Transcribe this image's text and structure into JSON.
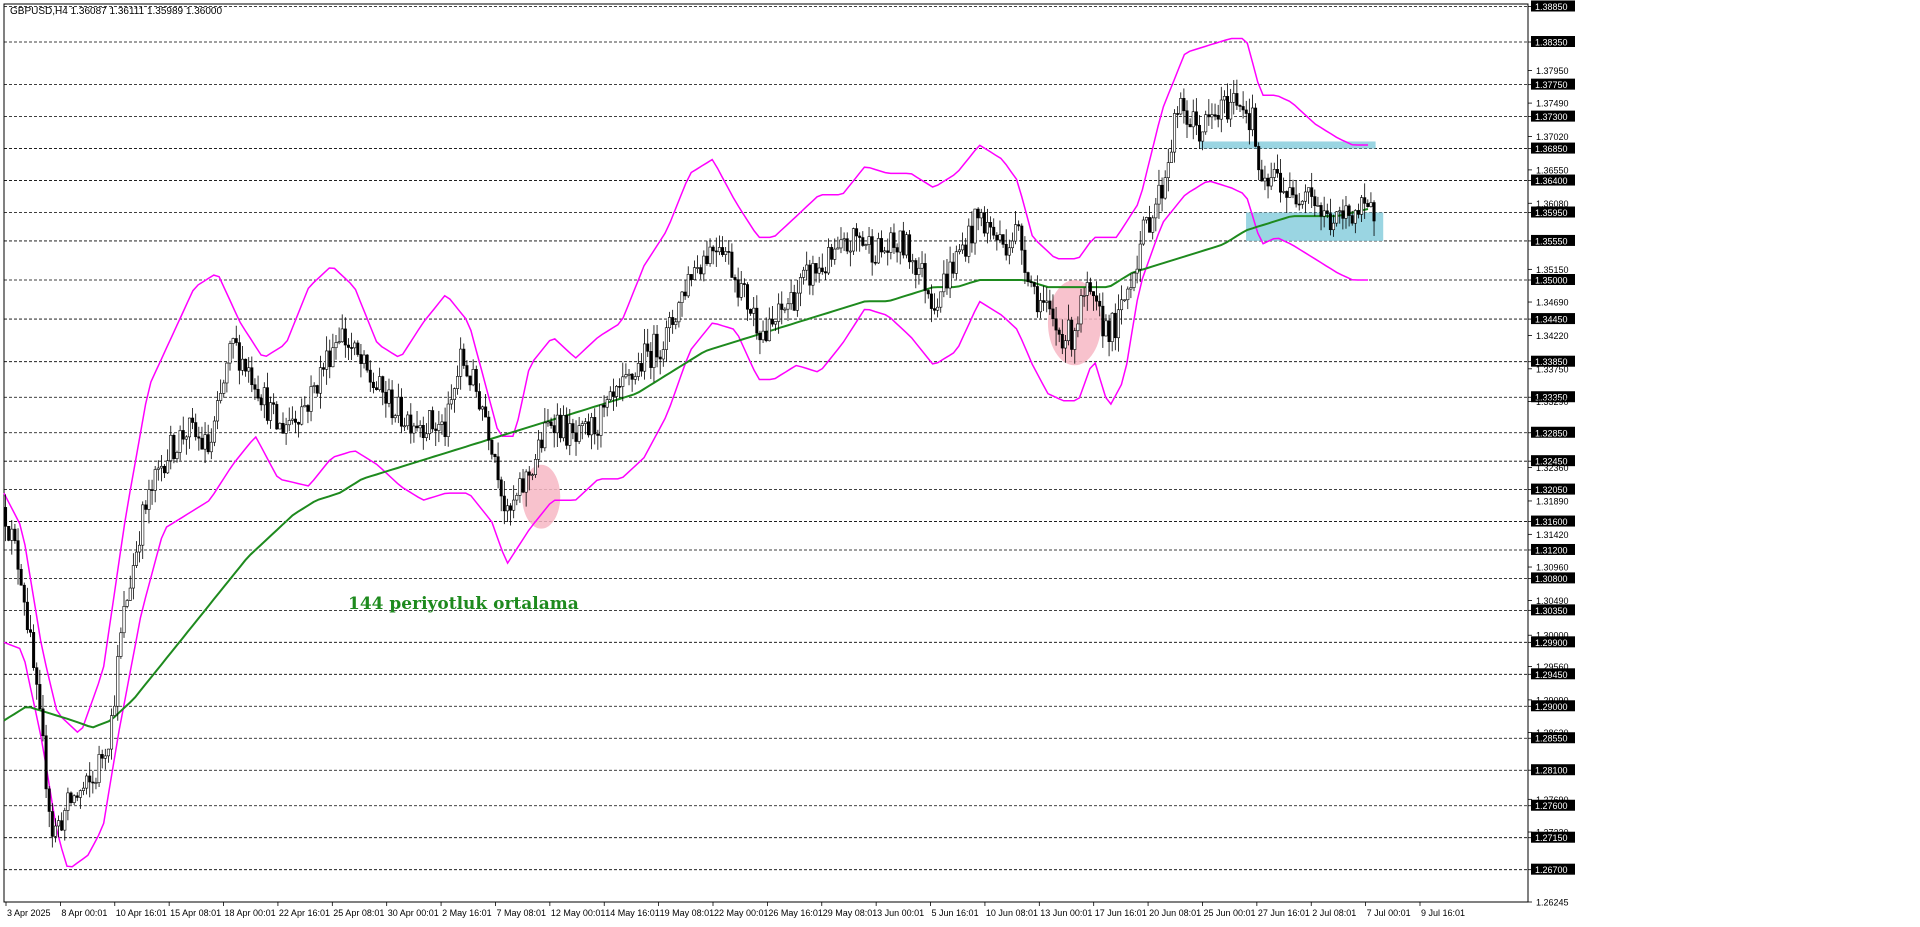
{
  "chart_data": {
    "type": "candlestick",
    "symbol_header": "GBPUSD,H4  1.36087 1.36111 1.35989 1.36000",
    "annotation": "144 periyotluk ortalama",
    "colors": {
      "candles": "#000000",
      "bollinger": "#ff00ff",
      "ma": "#1e8a1e",
      "zone_blue": "#8fd0df",
      "zone_red": "#f7b7c4",
      "grid": "#000000",
      "tag_bg": "#000000",
      "tag_text": "#ffffff"
    },
    "ylim": [
      1.26245,
      1.38885
    ],
    "y_axis_ticks": [
      "1.38850",
      "1.38350",
      "1.37950",
      "1.37750",
      "1.37490",
      "1.37300",
      "1.37020",
      "1.36850",
      "1.36550",
      "1.36400",
      "1.36080",
      "1.35950",
      "1.35550",
      "1.35150",
      "1.35000",
      "1.34690",
      "1.34450",
      "1.34220",
      "1.33850",
      "1.33750",
      "1.33350",
      "1.33290",
      "1.32850",
      "1.32450",
      "1.32360",
      "1.32050",
      "1.31890",
      "1.31600",
      "1.31420",
      "1.31200",
      "1.30960",
      "1.30800",
      "1.30490",
      "1.30350",
      "1.30000",
      "1.29900",
      "1.29560",
      "1.29450",
      "1.29090",
      "1.29000",
      "1.28630",
      "1.28550",
      "1.28100",
      "1.27690",
      "1.27600",
      "1.27230",
      "1.27150",
      "1.26700",
      "1.26245"
    ],
    "y_axis_tags": [
      "1.38850",
      "1.38350",
      "1.37750",
      "1.37300",
      "1.36850",
      "1.36400",
      "1.35950",
      "1.35550",
      "1.35000",
      "1.34450",
      "1.33850",
      "1.33350",
      "1.32850",
      "1.32450",
      "1.32050",
      "1.31600",
      "1.31200",
      "1.30800",
      "1.30350",
      "1.29900",
      "1.29450",
      "1.29000",
      "1.28550",
      "1.28100",
      "1.27600",
      "1.27150",
      "1.26700"
    ],
    "horizontal_levels": [
      1.3885,
      1.3835,
      1.3775,
      1.373,
      1.3685,
      1.364,
      1.3595,
      1.3555,
      1.35,
      1.3445,
      1.3385,
      1.3335,
      1.3285,
      1.3245,
      1.3205,
      1.316,
      1.312,
      1.308,
      1.3035,
      1.299,
      1.2945,
      1.29,
      1.2855,
      1.281,
      1.276,
      1.2715,
      1.267
    ],
    "x_labels": [
      "3 Apr 2025",
      "8 Apr 00:01",
      "10 Apr 16:01",
      "15 Apr 08:01",
      "18 Apr 00:01",
      "22 Apr 16:01",
      "25 Apr 08:01",
      "30 Apr 00:01",
      "2 May 16:01",
      "7 May 08:01",
      "12 May 00:01",
      "14 May 16:01",
      "19 May 08:01",
      "22 May 00:01",
      "26 May 16:01",
      "29 May 08:01",
      "3 Jun 00:01",
      "5 Jun 16:01",
      "10 Jun 08:01",
      "13 Jun 00:01",
      "17 Jun 16:01",
      "20 Jun 08:01",
      "25 Jun 00:01",
      "27 Jun 16:01",
      "2 Jul 08:01",
      "7 Jul 00:01",
      "9 Jul 16:01"
    ],
    "price_path": [
      [
        0,
        1.318
      ],
      [
        0.012,
        1.308
      ],
      [
        0.025,
        1.285
      ],
      [
        0.032,
        1.272
      ],
      [
        0.045,
        1.277
      ],
      [
        0.058,
        1.279
      ],
      [
        0.07,
        1.287
      ],
      [
        0.078,
        1.302
      ],
      [
        0.09,
        1.316
      ],
      [
        0.105,
        1.325
      ],
      [
        0.12,
        1.329
      ],
      [
        0.135,
        1.326
      ],
      [
        0.15,
        1.341
      ],
      [
        0.165,
        1.336
      ],
      [
        0.18,
        1.329
      ],
      [
        0.2,
        1.333
      ],
      [
        0.22,
        1.343
      ],
      [
        0.24,
        1.336
      ],
      [
        0.26,
        1.331
      ],
      [
        0.29,
        1.329
      ],
      [
        0.3,
        1.339
      ],
      [
        0.315,
        1.332
      ],
      [
        0.325,
        1.323
      ],
      [
        0.33,
        1.316
      ],
      [
        0.345,
        1.323
      ],
      [
        0.36,
        1.331
      ],
      [
        0.375,
        1.327
      ],
      [
        0.39,
        1.33
      ],
      [
        0.405,
        1.334
      ],
      [
        0.42,
        1.339
      ],
      [
        0.435,
        1.342
      ],
      [
        0.45,
        1.351
      ],
      [
        0.47,
        1.356
      ],
      [
        0.485,
        1.348
      ],
      [
        0.5,
        1.342
      ],
      [
        0.515,
        1.347
      ],
      [
        0.53,
        1.351
      ],
      [
        0.545,
        1.353
      ],
      [
        0.56,
        1.356
      ],
      [
        0.575,
        1.354
      ],
      [
        0.59,
        1.355
      ],
      [
        0.6,
        1.352
      ],
      [
        0.61,
        1.347
      ],
      [
        0.625,
        1.353
      ],
      [
        0.64,
        1.359
      ],
      [
        0.655,
        1.355
      ],
      [
        0.665,
        1.357
      ],
      [
        0.675,
        1.349
      ],
      [
        0.69,
        1.343
      ],
      [
        0.7,
        1.342
      ],
      [
        0.71,
        1.348
      ],
      [
        0.72,
        1.344
      ],
      [
        0.73,
        1.343
      ],
      [
        0.74,
        1.351
      ],
      [
        0.75,
        1.358
      ],
      [
        0.76,
        1.363
      ],
      [
        0.77,
        1.374
      ],
      [
        0.785,
        1.371
      ],
      [
        0.795,
        1.373
      ],
      [
        0.81,
        1.376
      ],
      [
        0.82,
        1.372
      ],
      [
        0.825,
        1.362
      ],
      [
        0.835,
        1.365
      ],
      [
        0.845,
        1.361
      ],
      [
        0.855,
        1.364
      ],
      [
        0.865,
        1.359
      ],
      [
        0.875,
        1.358
      ],
      [
        0.885,
        1.36
      ],
      [
        0.895,
        1.359
      ],
      [
        0.9,
        1.36
      ]
    ],
    "bollinger_upper": [
      [
        0,
        1.32
      ],
      [
        0.012,
        1.315
      ],
      [
        0.025,
        1.298
      ],
      [
        0.035,
        1.289
      ],
      [
        0.05,
        1.286
      ],
      [
        0.065,
        1.295
      ],
      [
        0.08,
        1.317
      ],
      [
        0.095,
        1.335
      ],
      [
        0.11,
        1.342
      ],
      [
        0.125,
        1.349
      ],
      [
        0.14,
        1.351
      ],
      [
        0.155,
        1.344
      ],
      [
        0.17,
        1.339
      ],
      [
        0.185,
        1.341
      ],
      [
        0.2,
        1.349
      ],
      [
        0.215,
        1.352
      ],
      [
        0.23,
        1.349
      ],
      [
        0.245,
        1.341
      ],
      [
        0.26,
        1.339
      ],
      [
        0.275,
        1.344
      ],
      [
        0.29,
        1.348
      ],
      [
        0.305,
        1.344
      ],
      [
        0.315,
        1.336
      ],
      [
        0.325,
        1.328
      ],
      [
        0.335,
        1.328
      ],
      [
        0.345,
        1.338
      ],
      [
        0.36,
        1.342
      ],
      [
        0.375,
        1.339
      ],
      [
        0.39,
        1.342
      ],
      [
        0.405,
        1.344
      ],
      [
        0.42,
        1.352
      ],
      [
        0.435,
        1.357
      ],
      [
        0.45,
        1.365
      ],
      [
        0.465,
        1.367
      ],
      [
        0.48,
        1.361
      ],
      [
        0.495,
        1.356
      ],
      [
        0.505,
        1.356
      ],
      [
        0.52,
        1.359
      ],
      [
        0.535,
        1.362
      ],
      [
        0.55,
        1.362
      ],
      [
        0.565,
        1.366
      ],
      [
        0.58,
        1.365
      ],
      [
        0.595,
        1.365
      ],
      [
        0.61,
        1.363
      ],
      [
        0.625,
        1.365
      ],
      [
        0.64,
        1.369
      ],
      [
        0.655,
        1.367
      ],
      [
        0.665,
        1.364
      ],
      [
        0.675,
        1.356
      ],
      [
        0.69,
        1.353
      ],
      [
        0.705,
        1.353
      ],
      [
        0.715,
        1.356
      ],
      [
        0.73,
        1.356
      ],
      [
        0.745,
        1.361
      ],
      [
        0.76,
        1.374
      ],
      [
        0.775,
        1.382
      ],
      [
        0.79,
        1.383
      ],
      [
        0.805,
        1.384
      ],
      [
        0.815,
        1.384
      ],
      [
        0.825,
        1.376
      ],
      [
        0.835,
        1.376
      ],
      [
        0.845,
        1.375
      ],
      [
        0.86,
        1.372
      ],
      [
        0.875,
        1.37
      ],
      [
        0.885,
        1.369
      ],
      [
        0.895,
        1.369
      ]
    ],
    "bollinger_lower": [
      [
        0,
        1.299
      ],
      [
        0.012,
        1.298
      ],
      [
        0.025,
        1.285
      ],
      [
        0.035,
        1.272
      ],
      [
        0.042,
        1.267
      ],
      [
        0.055,
        1.269
      ],
      [
        0.065,
        1.273
      ],
      [
        0.075,
        1.286
      ],
      [
        0.09,
        1.303
      ],
      [
        0.105,
        1.315
      ],
      [
        0.12,
        1.317
      ],
      [
        0.135,
        1.319
      ],
      [
        0.15,
        1.324
      ],
      [
        0.165,
        1.328
      ],
      [
        0.18,
        1.322
      ],
      [
        0.2,
        1.321
      ],
      [
        0.215,
        1.325
      ],
      [
        0.23,
        1.326
      ],
      [
        0.245,
        1.324
      ],
      [
        0.26,
        1.321
      ],
      [
        0.275,
        1.319
      ],
      [
        0.29,
        1.32
      ],
      [
        0.305,
        1.32
      ],
      [
        0.32,
        1.316
      ],
      [
        0.33,
        1.31
      ],
      [
        0.345,
        1.315
      ],
      [
        0.36,
        1.319
      ],
      [
        0.375,
        1.319
      ],
      [
        0.39,
        1.322
      ],
      [
        0.405,
        1.322
      ],
      [
        0.42,
        1.325
      ],
      [
        0.435,
        1.331
      ],
      [
        0.45,
        1.34
      ],
      [
        0.465,
        1.344
      ],
      [
        0.48,
        1.343
      ],
      [
        0.495,
        1.336
      ],
      [
        0.505,
        1.336
      ],
      [
        0.52,
        1.338
      ],
      [
        0.535,
        1.337
      ],
      [
        0.55,
        1.341
      ],
      [
        0.565,
        1.346
      ],
      [
        0.58,
        1.345
      ],
      [
        0.595,
        1.342
      ],
      [
        0.61,
        1.338
      ],
      [
        0.625,
        1.34
      ],
      [
        0.64,
        1.347
      ],
      [
        0.655,
        1.345
      ],
      [
        0.665,
        1.343
      ],
      [
        0.675,
        1.338
      ],
      [
        0.685,
        1.334
      ],
      [
        0.695,
        1.333
      ],
      [
        0.705,
        1.333
      ],
      [
        0.715,
        1.339
      ],
      [
        0.725,
        1.332
      ],
      [
        0.735,
        1.336
      ],
      [
        0.745,
        1.349
      ],
      [
        0.76,
        1.358
      ],
      [
        0.775,
        1.362
      ],
      [
        0.79,
        1.364
      ],
      [
        0.805,
        1.363
      ],
      [
        0.815,
        1.362
      ],
      [
        0.825,
        1.355
      ],
      [
        0.835,
        1.356
      ],
      [
        0.845,
        1.355
      ],
      [
        0.86,
        1.353
      ],
      [
        0.875,
        1.351
      ],
      [
        0.885,
        1.35
      ],
      [
        0.895,
        1.35
      ]
    ],
    "ma_144": [
      [
        0,
        1.288
      ],
      [
        0.015,
        1.29
      ],
      [
        0.03,
        1.289
      ],
      [
        0.045,
        1.288
      ],
      [
        0.058,
        1.287
      ],
      [
        0.07,
        1.288
      ],
      [
        0.085,
        1.291
      ],
      [
        0.1,
        1.295
      ],
      [
        0.115,
        1.299
      ],
      [
        0.13,
        1.303
      ],
      [
        0.145,
        1.307
      ],
      [
        0.16,
        1.311
      ],
      [
        0.175,
        1.314
      ],
      [
        0.19,
        1.317
      ],
      [
        0.205,
        1.319
      ],
      [
        0.22,
        1.32
      ],
      [
        0.235,
        1.322
      ],
      [
        0.25,
        1.323
      ],
      [
        0.265,
        1.324
      ],
      [
        0.28,
        1.325
      ],
      [
        0.295,
        1.326
      ],
      [
        0.31,
        1.327
      ],
      [
        0.325,
        1.328
      ],
      [
        0.34,
        1.329
      ],
      [
        0.355,
        1.33
      ],
      [
        0.37,
        1.331
      ],
      [
        0.385,
        1.332
      ],
      [
        0.4,
        1.333
      ],
      [
        0.415,
        1.334
      ],
      [
        0.43,
        1.336
      ],
      [
        0.445,
        1.338
      ],
      [
        0.46,
        1.34
      ],
      [
        0.475,
        1.341
      ],
      [
        0.49,
        1.342
      ],
      [
        0.505,
        1.343
      ],
      [
        0.52,
        1.344
      ],
      [
        0.535,
        1.345
      ],
      [
        0.55,
        1.346
      ],
      [
        0.565,
        1.347
      ],
      [
        0.58,
        1.347
      ],
      [
        0.595,
        1.348
      ],
      [
        0.61,
        1.349
      ],
      [
        0.625,
        1.349
      ],
      [
        0.64,
        1.35
      ],
      [
        0.655,
        1.35
      ],
      [
        0.67,
        1.35
      ],
      [
        0.685,
        1.349
      ],
      [
        0.7,
        1.349
      ],
      [
        0.715,
        1.349
      ],
      [
        0.725,
        1.349
      ],
      [
        0.74,
        1.351
      ],
      [
        0.755,
        1.352
      ],
      [
        0.77,
        1.353
      ],
      [
        0.785,
        1.354
      ],
      [
        0.8,
        1.355
      ],
      [
        0.815,
        1.357
      ],
      [
        0.83,
        1.358
      ],
      [
        0.845,
        1.359
      ],
      [
        0.86,
        1.359
      ],
      [
        0.875,
        1.359
      ],
      [
        0.895,
        1.36
      ]
    ],
    "zones": [
      {
        "kind": "resistance",
        "color": "blue",
        "x": [
          0.785,
          0.9
        ],
        "y": [
          1.3685,
          1.3695
        ]
      },
      {
        "kind": "support",
        "color": "blue",
        "x": [
          0.815,
          0.905
        ],
        "y": [
          1.3555,
          1.3595
        ]
      },
      {
        "kind": "circle",
        "color": "red",
        "x": [
          0.34,
          0.365
        ],
        "y": [
          1.315,
          1.324
        ]
      },
      {
        "kind": "circle",
        "color": "red",
        "x": [
          0.685,
          0.72
        ],
        "y": [
          1.338,
          1.35
        ]
      }
    ]
  }
}
